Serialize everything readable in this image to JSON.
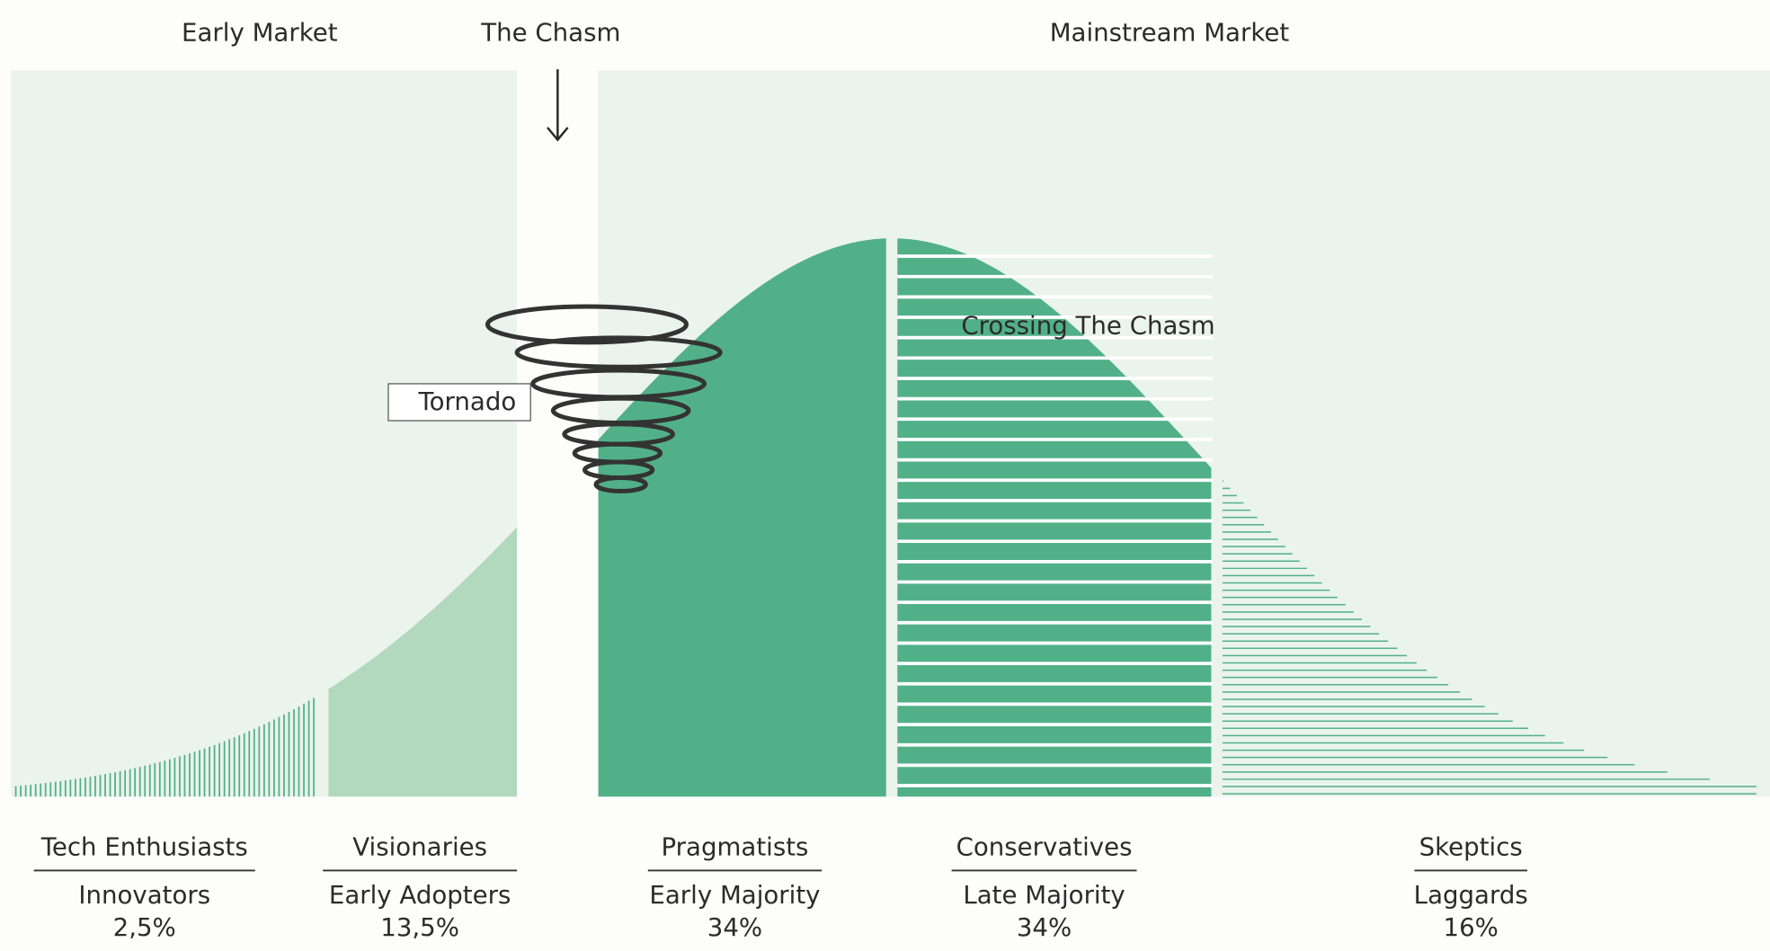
{
  "headers": {
    "early_market": "Early Market",
    "chasm": "The Chasm",
    "mainstream_market": "Mainstream Market"
  },
  "annotations": {
    "tornado": "Tornado",
    "crossing": "Crossing The Chasm"
  },
  "segments": [
    {
      "group": "Tech Enthusiasts",
      "name": "Innovators",
      "share": "2,5%"
    },
    {
      "group": "Visionaries",
      "name": "Early Adopters",
      "share": "13,5%"
    },
    {
      "group": "Pragmatists",
      "name": "Early Majority",
      "share": "34%"
    },
    {
      "group": "Conservatives",
      "name": "Late Majority",
      "share": "34%"
    },
    {
      "group": "Skeptics",
      "name": "Laggards",
      "share": "16%"
    }
  ]
}
